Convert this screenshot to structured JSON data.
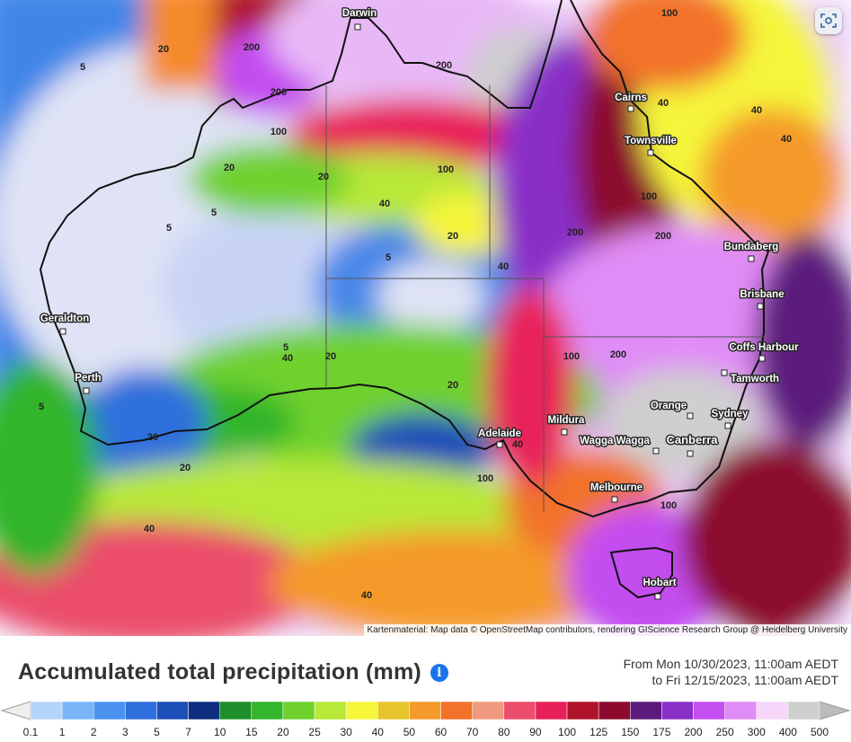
{
  "map": {
    "attribution": "Kartenmaterial: Map data © OpenStreetMap contributors, rendering GIScience Research Group @ Heidelberg University",
    "cities": [
      {
        "name": "Darwin"
      },
      {
        "name": "Cairns"
      },
      {
        "name": "Townsville"
      },
      {
        "name": "Bundaberg"
      },
      {
        "name": "Brisbane"
      },
      {
        "name": "Coffs Harbour"
      },
      {
        "name": "Tamworth"
      },
      {
        "name": "Orange"
      },
      {
        "name": "Sydney"
      },
      {
        "name": "Canberra"
      },
      {
        "name": "Wagga Wagga"
      },
      {
        "name": "Mildura"
      },
      {
        "name": "Adelaide"
      },
      {
        "name": "Melbourne"
      },
      {
        "name": "Hobart"
      },
      {
        "name": "Geraldton"
      },
      {
        "name": "Perth"
      }
    ],
    "contour_labels": [
      "100",
      "200",
      "200",
      "200",
      "20",
      "100",
      "5",
      "100",
      "40",
      "40",
      "20",
      "5",
      "20",
      "100",
      "200",
      "5",
      "40",
      "5",
      "20",
      "5",
      "20",
      "40",
      "200",
      "40",
      "20",
      "20",
      "100",
      "100",
      "5",
      "40",
      "40",
      "100",
      "200",
      "20",
      "40",
      "40"
    ],
    "controls": {
      "screenshot_icon": "camera-scan-icon"
    }
  },
  "footer": {
    "title": "Accumulated total precipitation (mm)",
    "info_icon_glyph": "i",
    "period_from": "From Mon 10/30/2023, 11:00am AEDT",
    "period_to": "to Fri 12/15/2023, 11:00am AEDT"
  },
  "legend": {
    "labels": [
      "0.1",
      "1",
      "2",
      "3",
      "5",
      "7",
      "10",
      "15",
      "20",
      "25",
      "30",
      "40",
      "50",
      "60",
      "70",
      "80",
      "90",
      "100",
      "125",
      "150",
      "175",
      "200",
      "250",
      "300",
      "400",
      "500"
    ],
    "colors": [
      "#dfe3f5",
      "#b5d4fb",
      "#7ab5f7",
      "#4b93ee",
      "#2d6fdc",
      "#1c4eb8",
      "#0d2d80",
      "#1e8f2a",
      "#33b52c",
      "#6fd12e",
      "#b8e838",
      "#f5f53a",
      "#e6c52c",
      "#f59a2b",
      "#f2722a",
      "#ef9a7e",
      "#eb4d6a",
      "#e8205a",
      "#b0122a",
      "#8c0a2e",
      "#5c1a7d",
      "#8a2fc8",
      "#c44ef0",
      "#e08cf6",
      "#f6d7fa",
      "#cfcfcf"
    ],
    "end_colors": {
      "left": "#eeeeee",
      "right": "#bbbbbb"
    }
  }
}
